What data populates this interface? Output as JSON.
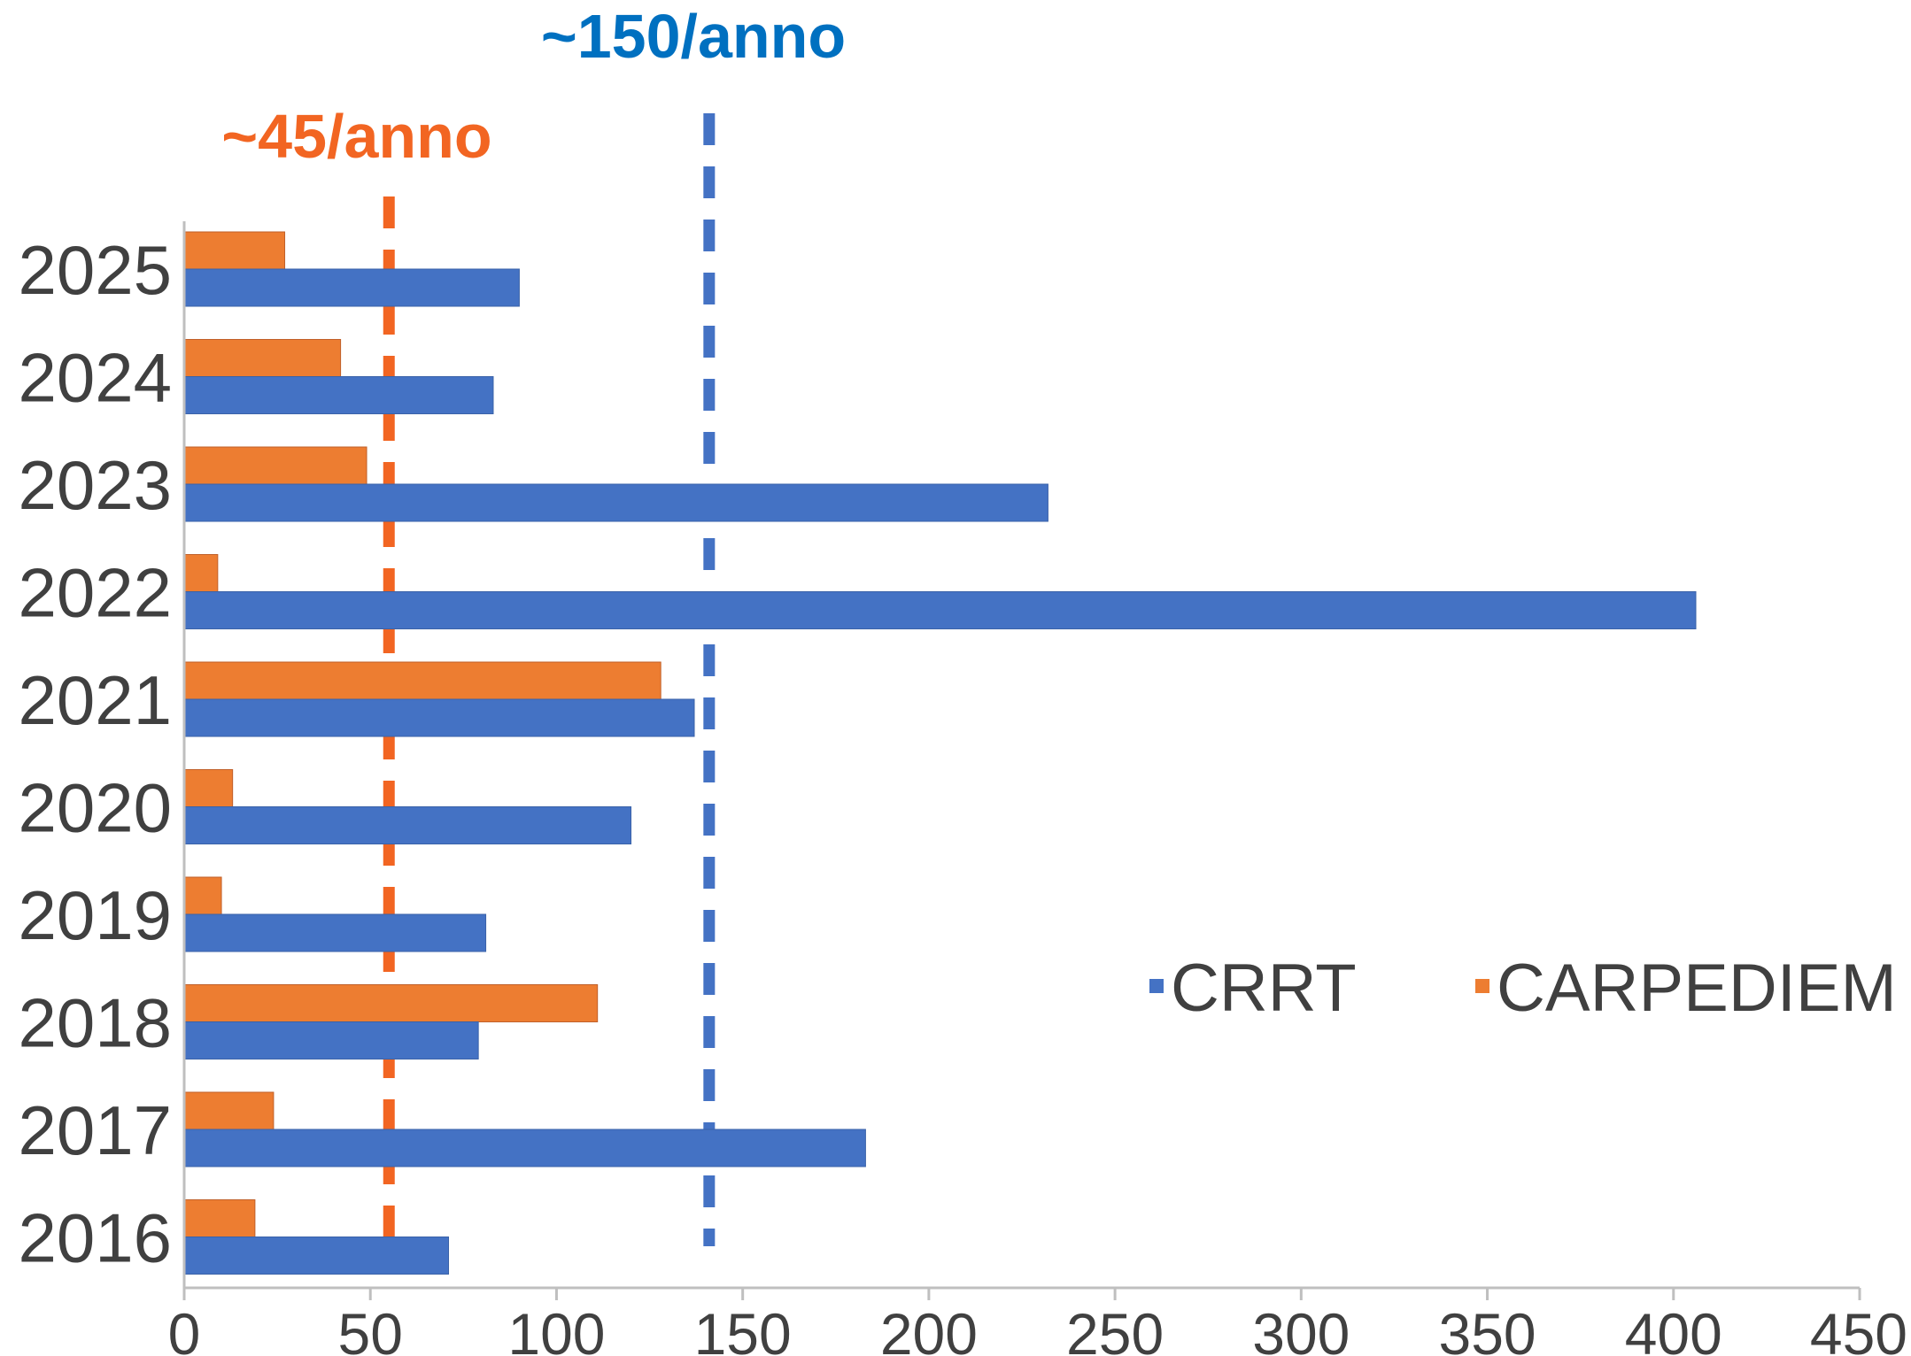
{
  "chart_data": {
    "type": "bar",
    "orientation": "horizontal",
    "categories": [
      "2025",
      "2024",
      "2023",
      "2022",
      "2021",
      "2020",
      "2019",
      "2018",
      "2017",
      "2016"
    ],
    "series": [
      {
        "name": "CARPEDIEM",
        "color": "#ed7d31",
        "values": [
          27,
          42,
          49,
          9,
          128,
          13,
          10,
          111,
          24,
          19
        ]
      },
      {
        "name": "CRRT",
        "color": "#4472c4",
        "values": [
          90,
          83,
          232,
          406,
          137,
          120,
          81,
          79,
          183,
          71
        ]
      }
    ],
    "xlim": [
      0,
      450
    ],
    "xticks": [
      "0",
      "50",
      "100",
      "150",
      "200",
      "250",
      "300",
      "350",
      "400",
      "450"
    ],
    "xtick_values": [
      0,
      50,
      100,
      150,
      200,
      250,
      300,
      350,
      400,
      450
    ],
    "grid": false,
    "legend": {
      "placement": "right",
      "entries": [
        {
          "name": "CRRT",
          "color": "#4472c4"
        },
        {
          "name": "CARPEDIEM",
          "color": "#ed7d31"
        }
      ]
    },
    "reference_lines": [
      {
        "name": "carpediem-avg",
        "x": 55,
        "label": "~45/anno",
        "color": "#f26522"
      },
      {
        "name": "crrt-avg",
        "x": 141,
        "label": "~150/anno",
        "color": "#0070c0",
        "line_color": "#4472c4"
      }
    ]
  }
}
